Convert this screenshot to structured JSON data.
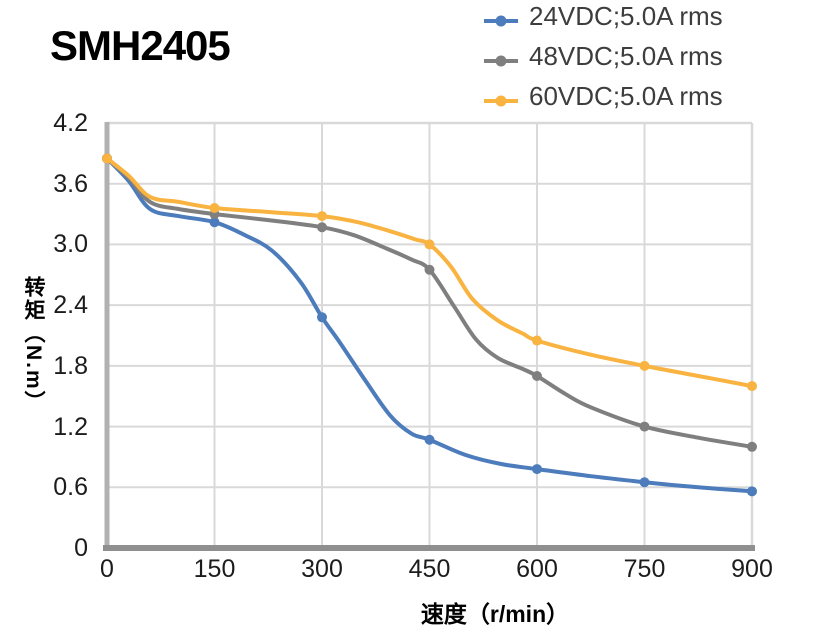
{
  "title": "SMH2405",
  "legend": {
    "position": "top-right",
    "items": [
      {
        "label": "24VDC;5.0A rms",
        "color": "#4C7CBB"
      },
      {
        "label": "48VDC;5.0A rms",
        "color": "#7F7F7F"
      },
      {
        "label": "60VDC;5.0A rms",
        "color": "#F9B340"
      }
    ]
  },
  "chart_data": {
    "type": "line",
    "title": "SMH2405",
    "xlabel": "速度（r/min）",
    "ylabel": "转矩（N.m）",
    "xlim": [
      0,
      900
    ],
    "ylim": [
      0,
      4.2
    ],
    "grid": true,
    "legend_position": "top-right",
    "x_ticks": [
      "0",
      "150",
      "300",
      "450",
      "600",
      "750",
      "900"
    ],
    "y_ticks": [
      "0",
      "0.6",
      "1.2",
      "1.8",
      "2.4",
      "3.0",
      "3.6",
      "4.2"
    ],
    "series": [
      {
        "name": "24VDC;5.0A rms",
        "color": "#4C7CBB",
        "marker": "circle",
        "points": [
          [
            0,
            3.85
          ],
          [
            150,
            3.22
          ],
          [
            300,
            2.28
          ],
          [
            450,
            1.07
          ],
          [
            600,
            0.78
          ],
          [
            750,
            0.65
          ],
          [
            900,
            0.56
          ]
        ],
        "curve": [
          [
            0,
            3.85
          ],
          [
            30,
            3.63
          ],
          [
            60,
            3.35
          ],
          [
            100,
            3.28
          ],
          [
            150,
            3.22
          ],
          [
            190,
            3.1
          ],
          [
            230,
            2.94
          ],
          [
            270,
            2.63
          ],
          [
            300,
            2.28
          ],
          [
            325,
            2.03
          ],
          [
            360,
            1.66
          ],
          [
            395,
            1.31
          ],
          [
            425,
            1.13
          ],
          [
            450,
            1.07
          ],
          [
            500,
            0.92
          ],
          [
            550,
            0.83
          ],
          [
            600,
            0.78
          ],
          [
            675,
            0.71
          ],
          [
            750,
            0.65
          ],
          [
            825,
            0.6
          ],
          [
            900,
            0.56
          ]
        ]
      },
      {
        "name": "48VDC;5.0A rms",
        "color": "#7F7F7F",
        "marker": "circle",
        "points": [
          [
            0,
            3.85
          ],
          [
            150,
            3.3
          ],
          [
            300,
            3.17
          ],
          [
            450,
            2.75
          ],
          [
            600,
            1.7
          ],
          [
            750,
            1.2
          ],
          [
            900,
            1.0
          ]
        ],
        "curve": [
          [
            0,
            3.85
          ],
          [
            30,
            3.66
          ],
          [
            60,
            3.42
          ],
          [
            100,
            3.35
          ],
          [
            150,
            3.3
          ],
          [
            225,
            3.24
          ],
          [
            300,
            3.17
          ],
          [
            345,
            3.09
          ],
          [
            390,
            2.96
          ],
          [
            425,
            2.85
          ],
          [
            450,
            2.75
          ],
          [
            485,
            2.38
          ],
          [
            515,
            2.06
          ],
          [
            545,
            1.88
          ],
          [
            580,
            1.77
          ],
          [
            600,
            1.7
          ],
          [
            640,
            1.52
          ],
          [
            675,
            1.39
          ],
          [
            750,
            1.2
          ],
          [
            825,
            1.09
          ],
          [
            900,
            1.0
          ]
        ]
      },
      {
        "name": "60VDC;5.0A rms",
        "color": "#F9B340",
        "marker": "circle",
        "points": [
          [
            0,
            3.85
          ],
          [
            150,
            3.36
          ],
          [
            300,
            3.28
          ],
          [
            450,
            3.0
          ],
          [
            600,
            2.05
          ],
          [
            750,
            1.8
          ],
          [
            900,
            1.6
          ]
        ],
        "curve": [
          [
            0,
            3.85
          ],
          [
            30,
            3.68
          ],
          [
            60,
            3.47
          ],
          [
            100,
            3.42
          ],
          [
            150,
            3.36
          ],
          [
            225,
            3.32
          ],
          [
            300,
            3.28
          ],
          [
            350,
            3.22
          ],
          [
            400,
            3.12
          ],
          [
            430,
            3.05
          ],
          [
            450,
            3.0
          ],
          [
            480,
            2.78
          ],
          [
            510,
            2.46
          ],
          [
            545,
            2.25
          ],
          [
            580,
            2.12
          ],
          [
            600,
            2.05
          ],
          [
            675,
            1.91
          ],
          [
            750,
            1.8
          ],
          [
            825,
            1.7
          ],
          [
            900,
            1.6
          ]
        ]
      }
    ]
  },
  "palette": {
    "grid": "#d9d9d9",
    "plot_border": "#d9d9d9",
    "y_axis_line": "#b1b1b1",
    "x_axis_line": "#8f8f8f",
    "tick_text": "#1c1c1c",
    "legend_text": "#3d3d3d",
    "title_text": "#000000"
  }
}
